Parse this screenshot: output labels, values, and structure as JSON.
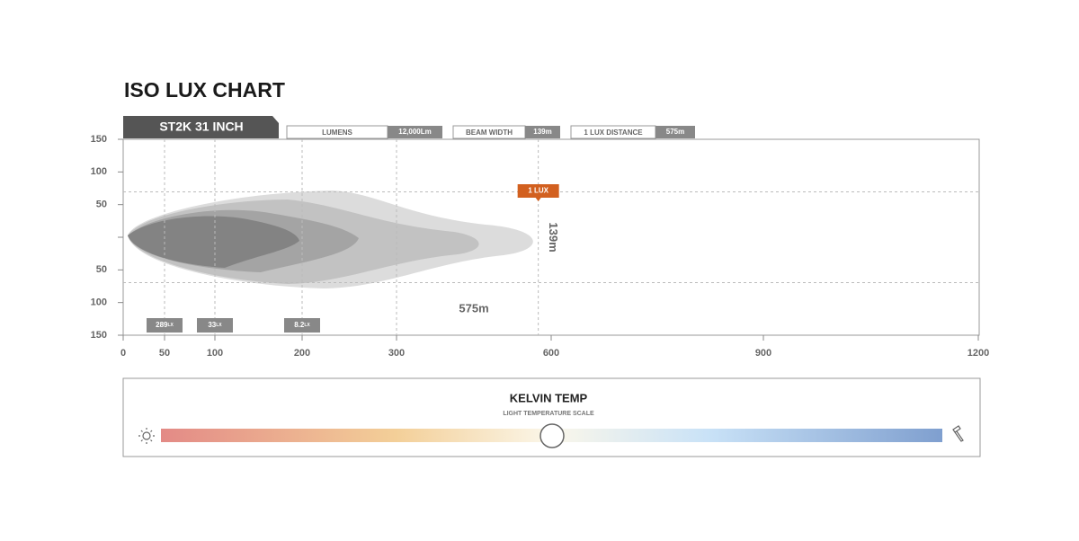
{
  "chart_data": {
    "type": "iso_lux",
    "title": "ISO LUX CHART",
    "product": "ST2K 31 INCH",
    "stats": [
      {
        "name": "LUMENS",
        "value": "12,000Lm"
      },
      {
        "name": "BEAM WIDTH",
        "value": "139m"
      },
      {
        "name": "1 LUX DISTANCE",
        "value": "575m"
      }
    ],
    "xticks": [
      0,
      50,
      100,
      200,
      300,
      600,
      900,
      1200
    ],
    "xlim": [
      0,
      1200
    ],
    "ylim": [
      -150,
      150
    ],
    "yticks": [
      {
        "value": 150,
        "label": "150"
      },
      {
        "value": 100,
        "label": "100"
      },
      {
        "value": 50,
        "label": "50"
      },
      {
        "value": 0,
        "label": null
      },
      {
        "value": -50,
        "label": "50"
      },
      {
        "value": -100,
        "label": "100"
      },
      {
        "value": -150,
        "label": "150"
      }
    ],
    "zones": [
      {
        "label": "289",
        "unit": "LX",
        "x": 50
      },
      {
        "label": "33",
        "unit": "LX",
        "x": 100
      },
      {
        "label": "8.2",
        "unit": "LX",
        "x": 200
      }
    ],
    "one_lux": {
      "label": "1 LUX",
      "distance": 575,
      "distance_label": "575m",
      "beam_width": 139,
      "beam_width_label": "139m"
    },
    "kelvin": {
      "title": "KELVIN TEMP",
      "subtitle": "LIGHT TEMPERATURE SCALE"
    }
  }
}
